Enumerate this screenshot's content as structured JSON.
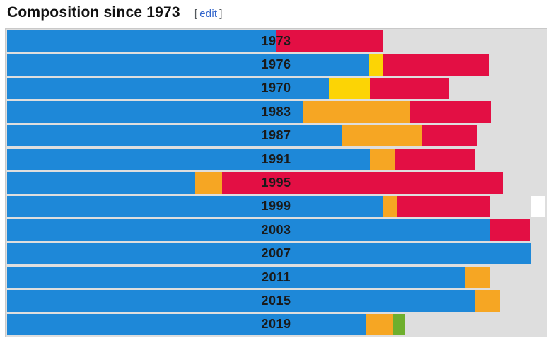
{
  "header": {
    "title": "Composition since 1973",
    "edit_open_bracket": "[",
    "edit_label": "edit",
    "edit_close_bracket": "]"
  },
  "chart_data": {
    "type": "bar",
    "subtype": "horizontal-stacked-composition",
    "title": "Composition since 1973",
    "orientation": "horizontal",
    "unit": "percent_of_full_row_width",
    "legend": "none",
    "background_color": "#dedede",
    "border_color": "#c9c9c9",
    "palette": {
      "blue": "#1e88d8",
      "yellow": "#fcd405",
      "orange": "#f6a623",
      "red": "#e30f44",
      "green": "#6eaf2d",
      "gray": "#dedede",
      "white": "#ffffff"
    },
    "rows": [
      {
        "year": "1973",
        "segments": [
          {
            "color": "blue",
            "pct": 49.9
          },
          {
            "color": "red",
            "pct": 20.0
          }
        ]
      },
      {
        "year": "1976",
        "segments": [
          {
            "color": "blue",
            "pct": 67.3
          },
          {
            "color": "yellow",
            "pct": 2.5
          },
          {
            "color": "red",
            "pct": 19.8
          }
        ]
      },
      {
        "year": "1970",
        "segments": [
          {
            "color": "blue",
            "pct": 59.8
          },
          {
            "color": "yellow",
            "pct": 7.6
          },
          {
            "color": "red",
            "pct": 14.7
          }
        ]
      },
      {
        "year": "1983",
        "segments": [
          {
            "color": "blue",
            "pct": 55.1
          },
          {
            "color": "orange",
            "pct": 19.8
          },
          {
            "color": "red",
            "pct": 15.0
          }
        ]
      },
      {
        "year": "1987",
        "segments": [
          {
            "color": "blue",
            "pct": 62.2
          },
          {
            "color": "orange",
            "pct": 14.9
          },
          {
            "color": "red",
            "pct": 10.2
          }
        ]
      },
      {
        "year": "1991",
        "segments": [
          {
            "color": "blue",
            "pct": 67.4
          },
          {
            "color": "orange",
            "pct": 4.8
          },
          {
            "color": "red",
            "pct": 14.8
          }
        ]
      },
      {
        "year": "1995",
        "segments": [
          {
            "color": "blue",
            "pct": 34.9
          },
          {
            "color": "orange",
            "pct": 5.1
          },
          {
            "color": "red",
            "pct": 52.1
          }
        ]
      },
      {
        "year": "1999",
        "segments": [
          {
            "color": "blue",
            "pct": 69.9
          },
          {
            "color": "orange",
            "pct": 2.5
          },
          {
            "color": "red",
            "pct": 17.3
          },
          {
            "color": "gray",
            "pct": 7.7
          },
          {
            "color": "white",
            "pct": 2.5
          }
        ]
      },
      {
        "year": "2003",
        "segments": [
          {
            "color": "blue",
            "pct": 89.7
          },
          {
            "color": "red",
            "pct": 7.6
          }
        ]
      },
      {
        "year": "2007",
        "segments": [
          {
            "color": "blue",
            "pct": 97.4
          }
        ]
      },
      {
        "year": "2011",
        "segments": [
          {
            "color": "blue",
            "pct": 85.1
          },
          {
            "color": "orange",
            "pct": 4.6
          }
        ]
      },
      {
        "year": "2015",
        "segments": [
          {
            "color": "blue",
            "pct": 87.0
          },
          {
            "color": "orange",
            "pct": 4.6
          }
        ]
      },
      {
        "year": "2019",
        "segments": [
          {
            "color": "blue",
            "pct": 66.8
          },
          {
            "color": "orange",
            "pct": 5.0
          },
          {
            "color": "green",
            "pct": 2.2
          }
        ]
      }
    ]
  }
}
